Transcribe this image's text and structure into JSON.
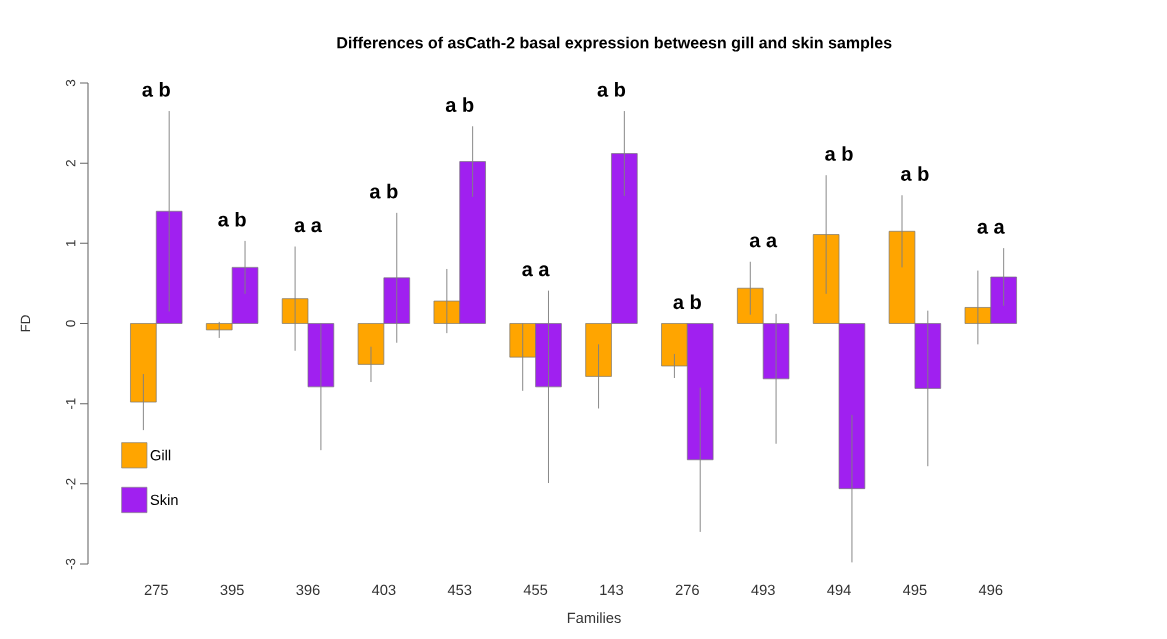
{
  "chart_data": {
    "type": "bar",
    "title": "Differences of asCath-2 basal expression betweesn gill and skin samples",
    "xlabel": "Families",
    "ylabel": "FD",
    "categories": [
      "275",
      "395",
      "396",
      "403",
      "453",
      "455",
      "143",
      "276",
      "493",
      "494",
      "495",
      "496"
    ],
    "series": [
      {
        "name": "Gill",
        "color": "#ffa500",
        "values": [
          -0.98,
          -0.08,
          0.31,
          -0.51,
          0.28,
          -0.42,
          -0.66,
          -0.53,
          0.44,
          1.11,
          1.15,
          0.2
        ],
        "errors": [
          0.35,
          0.1,
          0.65,
          0.22,
          0.4,
          0.42,
          0.4,
          0.15,
          0.33,
          0.74,
          0.45,
          0.46
        ]
      },
      {
        "name": "Skin",
        "color": "#a020f0",
        "values": [
          1.4,
          0.7,
          -0.79,
          0.57,
          2.02,
          -0.79,
          2.12,
          -1.7,
          -0.69,
          -2.06,
          -0.81,
          0.58
        ],
        "errors": [
          1.25,
          0.33,
          0.79,
          0.81,
          0.44,
          1.2,
          0.53,
          0.9,
          0.81,
          0.92,
          0.97,
          0.36
        ]
      }
    ],
    "ylim": [
      -3,
      3
    ],
    "yticks": [
      -3,
      -2,
      -1,
      0,
      1,
      2,
      3
    ],
    "legend": "bottom left",
    "annotations": [
      "a  b",
      "a  b",
      "a  a",
      "a  b",
      "a  b",
      "a  a",
      "a  b",
      "a  b",
      "a  a",
      "a  b",
      "a  b",
      "a  a"
    ]
  }
}
